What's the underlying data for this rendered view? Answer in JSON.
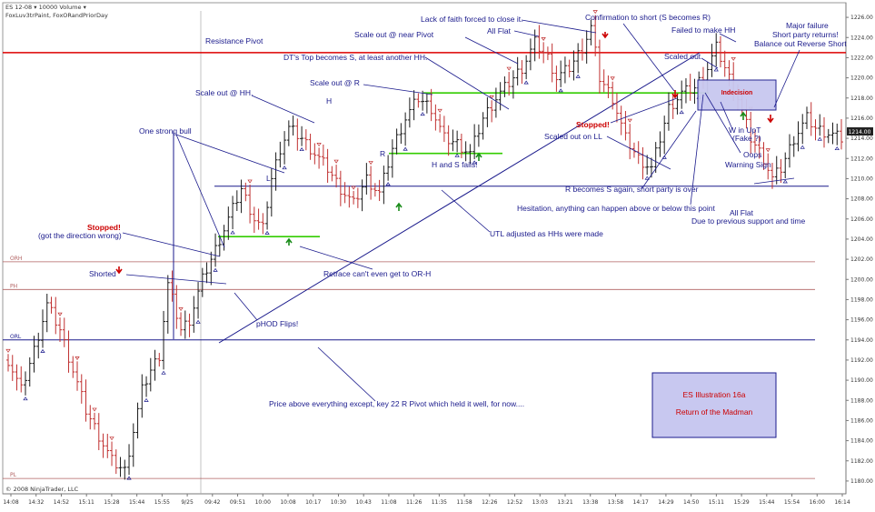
{
  "header": {
    "line1": "ES 12-08 ▾  10000 Volume ▾",
    "line2": "FoxLuv3trPaint, FoxORandPriorDay"
  },
  "copyright": "© 2008 NinjaTrader, LLC",
  "current_price_label": "1214.00",
  "illustration_box": {
    "title": "ES Illustration 16a",
    "subtitle": "Return of the Madman"
  },
  "indecision_label": "Indecision",
  "letters": {
    "L": "L",
    "H": "H",
    "R": "R"
  },
  "annotations": [
    "Resistance Pivot",
    "Scale out @ HH.",
    "One strong bull",
    "Stopped!",
    "(got the direction wrong)",
    "Shorted",
    "pHOD Flips!",
    "Price above everything except, key 22 R Pivot which held it well, for now....",
    "Retrace can't even get to OR-H",
    "DT's Top becomes S, at least another HH.",
    "Scale out @ R",
    "Scale out @ near Pivot",
    "Lack of faith forced to close it.",
    "All Flat",
    "Confirmation to short (S becomes R)",
    "Failed to make HH",
    "Major failure",
    "Short party returns!",
    "Balance out Reverse Short",
    "Scaled out",
    "Stopped!",
    "Scaled out on LL",
    "W in UpT",
    "(Fake ?)",
    "Oops",
    "Warning Sign",
    "H and S fails!",
    "UTL adjusted as HHs were made",
    "R becomes S again, short party is over",
    "Hesitation, anything can happen above or below this point",
    "All Flat",
    "Due to previous support and time"
  ],
  "level_labels": {
    "orh": "ORH",
    "ph": "PH",
    "orl": "ORL",
    "pl": "PL"
  },
  "colors": {
    "up_bar": "#1a1a1a",
    "down_bar": "#c03030",
    "resistance": "#dd0000",
    "level_line": "#b06060",
    "blue_line": "#1a1a8c",
    "green_line": "#33cc00",
    "box_fill": "#c8c8f0",
    "annotation": "#1a1a8c"
  },
  "chart_data": {
    "type": "bar",
    "y_axis": {
      "min": 1179,
      "max": 1227,
      "ticks": [
        "1226.00",
        "1224.00",
        "1222.00",
        "1220.00",
        "1218.00",
        "1216.00",
        "1214.00",
        "1212.00",
        "1210.00",
        "1208.00",
        "1206.00",
        "1204.00",
        "1202.00",
        "1200.00",
        "1198.00",
        "1196.00",
        "1194.00",
        "1192.00",
        "1190.00",
        "1188.00",
        "1186.00",
        "1184.00",
        "1182.00",
        "1180.00"
      ]
    },
    "x_axis": {
      "ticks": [
        "14:08",
        "14:32",
        "14:52",
        "15:11",
        "15:28",
        "15:44",
        "15:55",
        "9/25",
        "09:42",
        "09:51",
        "10:00",
        "10:08",
        "10:17",
        "10:30",
        "10:43",
        "11:08",
        "11:26",
        "11:35",
        "11:58",
        "12:26",
        "12:52",
        "13:03",
        "13:21",
        "13:38",
        "13:58",
        "14:17",
        "14:29",
        "14:50",
        "15:11",
        "15:29",
        "15:44",
        "15:54",
        "16:00",
        "16:14"
      ]
    },
    "levels": {
      "resistance_pivot": 1222.5,
      "orh": 1201.75,
      "ph": 1199,
      "orl": 1194,
      "pl": 1180.25,
      "support_blue": 1209.25
    },
    "green_levels": [
      {
        "price": 1204.25,
        "note": "pHOD"
      },
      {
        "price": 1212.5,
        "note": "H and S"
      },
      {
        "price": 1218.5,
        "note": "DT top"
      }
    ],
    "price_path": [
      [
        0,
        1192
      ],
      [
        3,
        1189
      ],
      [
        6,
        1193
      ],
      [
        9,
        1197.5
      ],
      [
        12,
        1195
      ],
      [
        15,
        1191
      ],
      [
        18,
        1187
      ],
      [
        21,
        1184.5
      ],
      [
        24,
        1182
      ],
      [
        27,
        1181
      ],
      [
        29,
        1185
      ],
      [
        31,
        1189
      ],
      [
        33,
        1191
      ],
      [
        35,
        1192.5
      ],
      [
        37,
        1199.5
      ],
      [
        40,
        1195
      ],
      [
        42,
        1196
      ],
      [
        45,
        1200
      ],
      [
        48,
        1203
      ],
      [
        50,
        1205
      ],
      [
        52,
        1207
      ],
      [
        54,
        1209
      ],
      [
        57,
        1206
      ],
      [
        59,
        1205
      ],
      [
        61,
        1210
      ],
      [
        63,
        1213
      ],
      [
        65,
        1215
      ],
      [
        68,
        1214
      ],
      [
        71,
        1212.5
      ],
      [
        74,
        1211
      ],
      [
        77,
        1209
      ],
      [
        80,
        1207.5
      ],
      [
        83,
        1210
      ],
      [
        86,
        1208.5
      ],
      [
        89,
        1213
      ],
      [
        92,
        1216
      ],
      [
        95,
        1218
      ],
      [
        98,
        1217
      ],
      [
        101,
        1214
      ],
      [
        104,
        1213.5
      ],
      [
        107,
        1212.5
      ],
      [
        110,
        1216
      ],
      [
        113,
        1218
      ],
      [
        116,
        1219.5
      ],
      [
        119,
        1221
      ],
      [
        122,
        1223.5
      ],
      [
        125,
        1222
      ],
      [
        127,
        1220
      ],
      [
        130,
        1221
      ],
      [
        133,
        1223
      ],
      [
        135,
        1225
      ],
      [
        137,
        1220
      ],
      [
        140,
        1218
      ],
      [
        143,
        1214
      ],
      [
        146,
        1212
      ],
      [
        149,
        1211
      ],
      [
        151,
        1214
      ],
      [
        153,
        1217
      ],
      [
        156,
        1218.5
      ],
      [
        159,
        1219
      ],
      [
        162,
        1221
      ],
      [
        164,
        1223
      ],
      [
        166,
        1221
      ],
      [
        169,
        1218
      ],
      [
        172,
        1214
      ],
      [
        175,
        1212
      ],
      [
        177,
        1210
      ],
      [
        179,
        1211
      ],
      [
        182,
        1214
      ],
      [
        185,
        1216
      ],
      [
        187,
        1215
      ],
      [
        190,
        1214.5
      ],
      [
        193,
        1214
      ]
    ]
  }
}
